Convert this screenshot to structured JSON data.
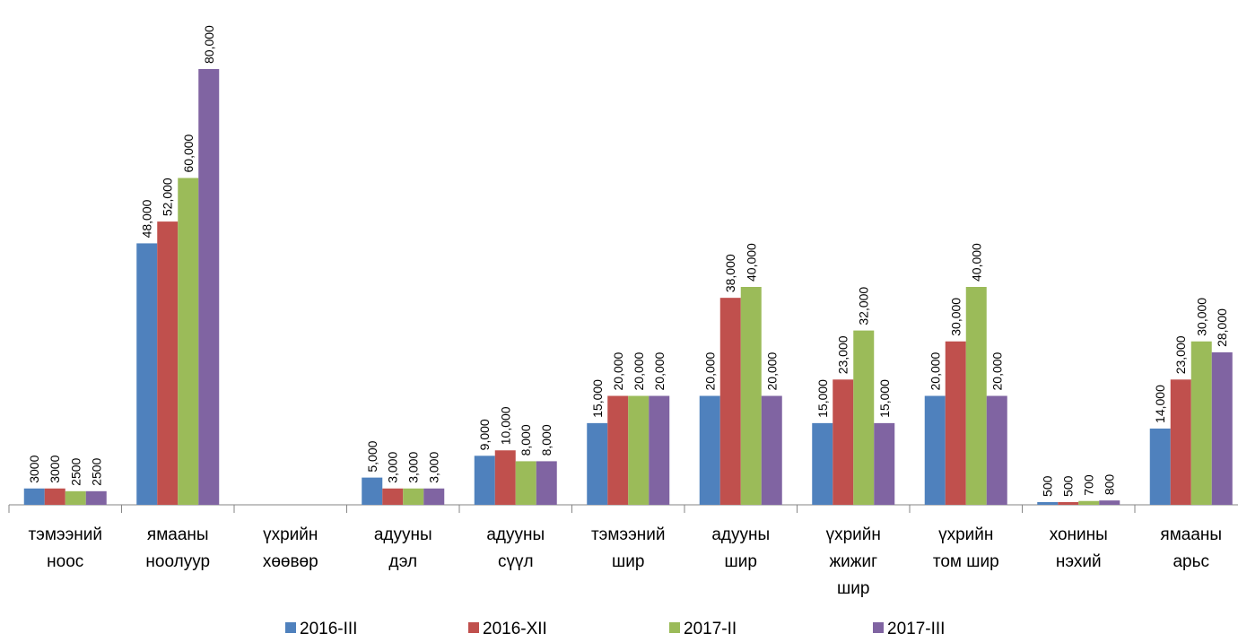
{
  "chart_data": {
    "type": "bar",
    "categories": [
      "тэмээний\nноос",
      "ямааны\nноолуур",
      "үхрийн\nхөөвөр",
      "адууны\nдэл",
      "адууны\nсүүл",
      "тэмээний\nшир",
      "адууны\nшир",
      "үхрийн\nжижиг\nшир",
      "үхрийн\nтом шир",
      "хонины\nнэхий",
      "ямааны\nарьс"
    ],
    "series": [
      {
        "name": "2016-III",
        "color": "#4f81bd",
        "values": [
          3000,
          48000,
          null,
          5000,
          9000,
          15000,
          20000,
          15000,
          20000,
          500,
          14000
        ],
        "value_labels": [
          "3000",
          "48,000",
          null,
          "5,000",
          "9,000",
          "15,000",
          "20,000",
          "15,000",
          "20,000",
          "500",
          "14,000"
        ]
      },
      {
        "name": "2016-XII",
        "color": "#c0504d",
        "values": [
          3000,
          52000,
          null,
          3000,
          10000,
          20000,
          38000,
          23000,
          30000,
          500,
          23000
        ],
        "value_labels": [
          "3000",
          "52,000",
          null,
          "3,000",
          "10,000",
          "20,000",
          "38,000",
          "23,000",
          "30,000",
          "500",
          "23,000"
        ]
      },
      {
        "name": "2017-II",
        "color": "#9bbb59",
        "values": [
          2500,
          60000,
          null,
          3000,
          8000,
          20000,
          40000,
          32000,
          40000,
          700,
          30000
        ],
        "value_labels": [
          "2500",
          "60,000",
          null,
          "3,000",
          "8,000",
          "20,000",
          "40,000",
          "32,000",
          "40,000",
          "700",
          "30,000"
        ]
      },
      {
        "name": "2017-III",
        "color": "#8064a2",
        "values": [
          2500,
          80000,
          null,
          3000,
          8000,
          20000,
          20000,
          15000,
          20000,
          800,
          28000
        ],
        "value_labels": [
          "2500",
          "80,000",
          null,
          "3,000",
          "8,000",
          "20,000",
          "20,000",
          "15,000",
          "20,000",
          "800",
          "28,000"
        ]
      }
    ],
    "legend": "bottom"
  }
}
